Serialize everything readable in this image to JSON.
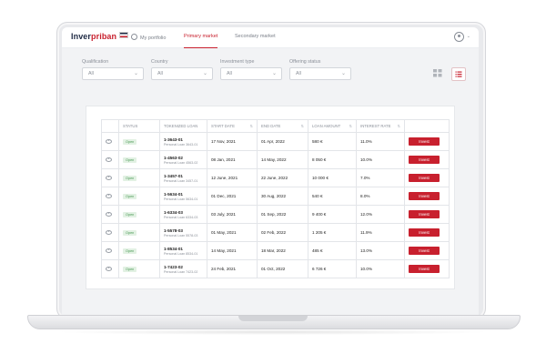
{
  "brand": {
    "logo_part1": "Inver",
    "logo_part2": "priban",
    "accent": "#c8202e",
    "navy": "#1f2a44"
  },
  "nav": {
    "items": [
      {
        "label": "My portfolio",
        "icon": "clock-icon"
      },
      {
        "label": "Primary market",
        "active": true
      },
      {
        "label": "Secondary market"
      }
    ],
    "user_icon": "user-icon"
  },
  "filters": [
    {
      "label": "Qualification",
      "value": "All"
    },
    {
      "label": "Country",
      "value": "All"
    },
    {
      "label": "Investment type",
      "value": "All"
    },
    {
      "label": "Offering status",
      "value": "All"
    }
  ],
  "view_toggle": {
    "grid_icon": "grid-icon",
    "list_icon": "list-icon",
    "active": "list"
  },
  "table": {
    "headers": [
      "STATUS",
      "TOKENIZED LOAN",
      "START DATE",
      "END DATE",
      "LOAN AMOUNT",
      "INTEREST RATE"
    ],
    "rows": [
      {
        "status": "Open",
        "loan_id": "1-3643-01",
        "loan_sub": "Personal Loan 3643-01",
        "start": "17 Nov, 2021",
        "end": "01 Apr, 2022",
        "amount": "580 €",
        "rate": "11.0%",
        "action": "Invest"
      },
      {
        "status": "Open",
        "loan_id": "1-4563-02",
        "loan_sub": "Personal Loan 4563-02",
        "start": "08 Jan, 2021",
        "end": "14 May, 2022",
        "amount": "8 050 €",
        "rate": "10.0%",
        "action": "Invest"
      },
      {
        "status": "Open",
        "loan_id": "1-3457-01",
        "loan_sub": "Personal Loan 3457-01",
        "start": "12 June, 2021",
        "end": "22 June, 2022",
        "amount": "10 000 €",
        "rate": "7.0%",
        "action": "Invest"
      },
      {
        "status": "Open",
        "loan_id": "1-5634-01",
        "loan_sub": "Personal Loan 5634-01",
        "start": "01 Dec, 2021",
        "end": "30 Aug, 2022",
        "amount": "540 €",
        "rate": "8.0%",
        "action": "Invest"
      },
      {
        "status": "Open",
        "loan_id": "1-6334-03",
        "loan_sub": "Personal Loan 6334-03",
        "start": "03 July, 2021",
        "end": "01 Sep, 2022",
        "amount": "9 400 €",
        "rate": "12.0%",
        "action": "Invest"
      },
      {
        "status": "Open",
        "loan_id": "1-5578-03",
        "loan_sub": "Personal Loan 5578-03",
        "start": "01 May, 2021",
        "end": "02 Feb, 2022",
        "amount": "1 205 €",
        "rate": "11.9%",
        "action": "Invest"
      },
      {
        "status": "Open",
        "loan_id": "1-8534-01",
        "loan_sub": "Personal Loan 8534-01",
        "start": "14 May, 2021",
        "end": "18 Mar, 2022",
        "amount": "485 €",
        "rate": "13.0%",
        "action": "Invest"
      },
      {
        "status": "Open",
        "loan_id": "1-7423-02",
        "loan_sub": "Personal Loan 7423-02",
        "start": "24 Feb, 2021",
        "end": "01 Oct, 2022",
        "amount": "6 726 €",
        "rate": "10.0%",
        "action": "Invest"
      }
    ]
  }
}
